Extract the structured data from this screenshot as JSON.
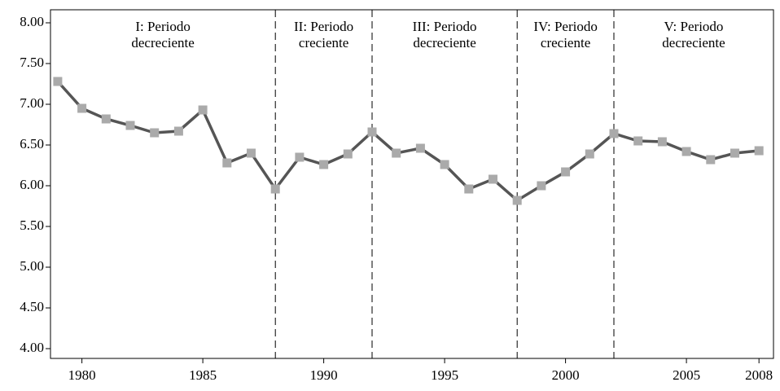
{
  "chart_data": {
    "type": "line",
    "x": [
      1979,
      1980,
      1981,
      1982,
      1983,
      1984,
      1985,
      1986,
      1987,
      1988,
      1989,
      1990,
      1991,
      1992,
      1993,
      1994,
      1995,
      1996,
      1997,
      1998,
      1999,
      2000,
      2001,
      2002,
      2003,
      2004,
      2005,
      2006,
      2007,
      2008
    ],
    "values": [
      7.28,
      6.95,
      6.82,
      6.74,
      6.65,
      6.67,
      6.93,
      6.28,
      6.4,
      5.96,
      6.35,
      6.26,
      6.39,
      6.66,
      6.4,
      6.46,
      6.26,
      5.96,
      6.08,
      5.82,
      6.0,
      6.17,
      6.39,
      6.64,
      6.55,
      6.54,
      6.42,
      6.32,
      6.4,
      6.43
    ],
    "line_color": "#555555",
    "marker_color": "#aaaaaa",
    "xlim": [
      1978.7,
      2008.6
    ],
    "xticks": [
      1980,
      1985,
      1990,
      1995,
      2000,
      2005,
      2008
    ],
    "ylim": [
      3.88,
      8.16
    ],
    "yticks": [
      {
        "value": 4,
        "label": "4.00"
      },
      {
        "value": 4.5,
        "label": "4.50"
      },
      {
        "value": 5,
        "label": "5.00"
      },
      {
        "value": 5.5,
        "label": "5.50"
      },
      {
        "value": 6,
        "label": "6.00"
      },
      {
        "value": 6.5,
        "label": "6.50"
      },
      {
        "value": 7,
        "label": "7.00"
      },
      {
        "value": 7.5,
        "label": "7.50"
      },
      {
        "value": 8,
        "label": "8.00"
      }
    ],
    "dividers": [
      1988,
      1992,
      1998,
      2002
    ],
    "periods": [
      [
        "I: Periodo",
        "decreciente"
      ],
      [
        "II: Periodo",
        "creciente"
      ],
      [
        "III: Periodo",
        "decreciente"
      ],
      [
        "IV: Periodo",
        "creciente"
      ],
      [
        "V: Periodo",
        "decreciente"
      ]
    ],
    "grid": false
  }
}
